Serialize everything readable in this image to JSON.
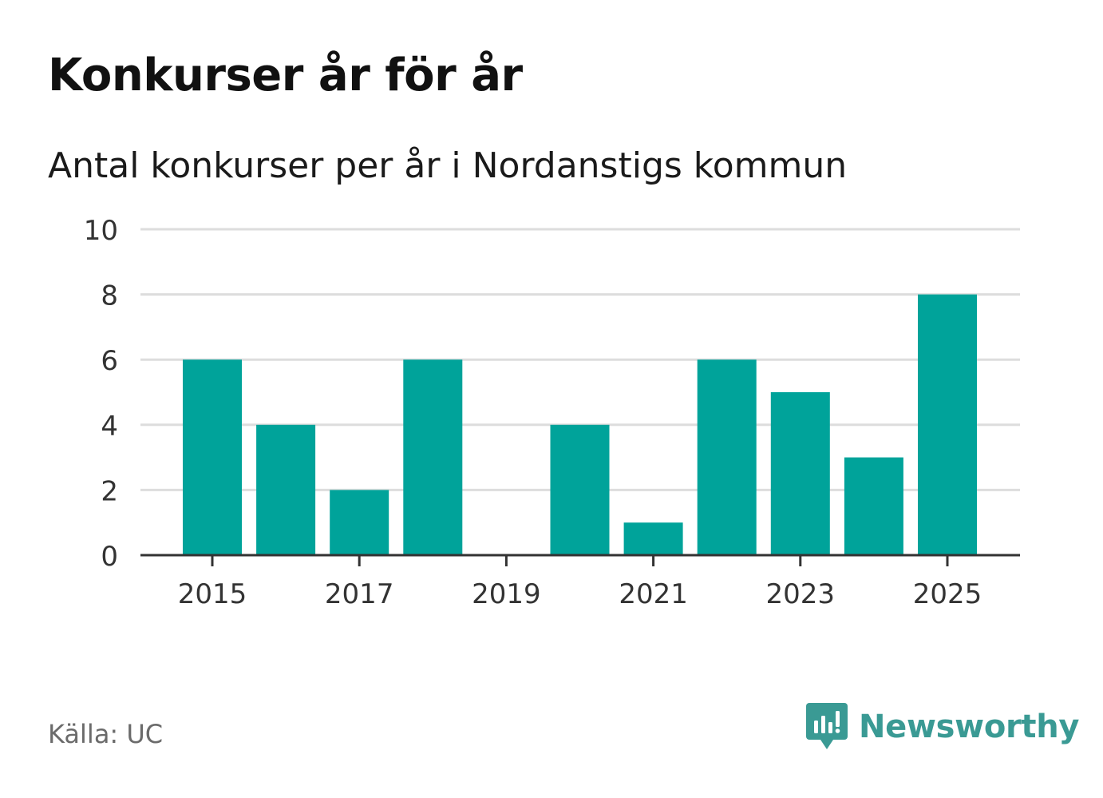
{
  "header": {
    "title": "Konkurser år för år",
    "subtitle": "Antal konkurser per år i Nordanstigs kommun"
  },
  "footer": {
    "source": "Källa: UC",
    "brand": "Newsworthy"
  },
  "colors": {
    "bar": "#00a39a",
    "grid": "#dddddd",
    "axis": "#333333",
    "brand": "#3a9a94"
  },
  "chart_data": {
    "type": "bar",
    "categories": [
      "2015",
      "2016",
      "2017",
      "2018",
      "2019",
      "2020",
      "2021",
      "2022",
      "2023",
      "2024",
      "2025"
    ],
    "values": [
      6,
      4,
      2,
      6,
      0,
      4,
      1,
      6,
      5,
      3,
      8
    ],
    "x_tick_labels": [
      "2015",
      "2017",
      "2019",
      "2021",
      "2023",
      "2025"
    ],
    "y_ticks": [
      0,
      2,
      4,
      6,
      8,
      10
    ],
    "ylim": [
      0,
      10
    ],
    "xlabel": "",
    "ylabel": "",
    "grid": true,
    "legend": "none"
  }
}
